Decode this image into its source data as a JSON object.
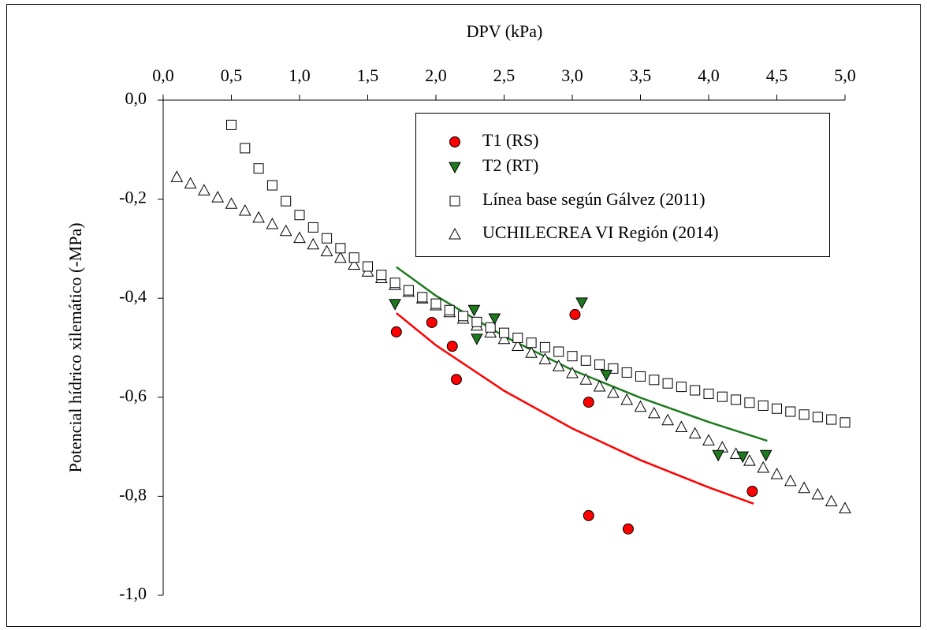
{
  "chart_data": {
    "type": "scatter",
    "xlabel": "DPV (kPa)",
    "ylabel": "Potencial hídrico xilemático (-MPa)",
    "xlim": [
      0,
      5
    ],
    "ylim": [
      -1,
      0
    ],
    "xticks": [
      {
        "value": 0,
        "label": "0,0"
      },
      {
        "value": 0.5,
        "label": "0,5"
      },
      {
        "value": 1,
        "label": "1,0"
      },
      {
        "value": 1.5,
        "label": "1,5"
      },
      {
        "value": 2,
        "label": "2,0"
      },
      {
        "value": 2.5,
        "label": "2,5"
      },
      {
        "value": 3,
        "label": "3,0"
      },
      {
        "value": 3.5,
        "label": "3,5"
      },
      {
        "value": 4,
        "label": "4,0"
      },
      {
        "value": 4.5,
        "label": "4,5"
      },
      {
        "value": 5,
        "label": "5,0"
      }
    ],
    "yticks": [
      {
        "value": 0,
        "label": "0,0"
      },
      {
        "value": -0.2,
        "label": "-0,2"
      },
      {
        "value": -0.4,
        "label": "-0,4"
      },
      {
        "value": -0.6,
        "label": "-0,6"
      },
      {
        "value": -0.8,
        "label": "-0,8"
      },
      {
        "value": -1,
        "label": "-1,0"
      }
    ],
    "legend": "top-right",
    "series": [
      {
        "name": "T1 (RS)",
        "color": "#ff0000",
        "marker": "circle",
        "x": [
          1.71,
          1.97,
          2.12,
          2.15,
          3.02,
          3.12,
          3.12,
          3.41,
          4.32
        ],
        "values": [
          -0.468,
          -0.449,
          -0.497,
          -0.564,
          -0.433,
          -0.61,
          -0.839,
          -0.866,
          -0.79
        ]
      },
      {
        "name": "T2 (RT)",
        "color": "#1f7a1f",
        "marker": "triangle-down",
        "x": [
          1.7,
          2.28,
          2.3,
          2.43,
          3.07,
          3.25,
          4.07,
          4.25,
          4.42
        ],
        "values": [
          -0.412,
          -0.424,
          -0.482,
          -0.441,
          -0.409,
          -0.555,
          -0.717,
          -0.72,
          -0.717
        ]
      },
      {
        "name": "Línea base según Gálvez (2011)",
        "color": "#ffffff",
        "marker": "square",
        "x": [
          0.5,
          0.6,
          0.7,
          0.8,
          0.9,
          1.0,
          1.1,
          1.2,
          1.3,
          1.4,
          1.5,
          1.6,
          1.7,
          1.8,
          1.9,
          2.0,
          2.1,
          2.2,
          2.3,
          2.4,
          2.5,
          2.6,
          2.7,
          2.8,
          2.9,
          3.0,
          3.1,
          3.2,
          3.3,
          3.4,
          3.5,
          3.6,
          3.7,
          3.8,
          3.9,
          4.0,
          4.1,
          4.2,
          4.3,
          4.4,
          4.5,
          4.6,
          4.7,
          4.8,
          4.9,
          5.0
        ],
        "values": [
          -0.05,
          -0.097,
          -0.138,
          -0.172,
          -0.204,
          -0.232,
          -0.257,
          -0.279,
          -0.299,
          -0.318,
          -0.336,
          -0.353,
          -0.369,
          -0.384,
          -0.398,
          -0.411,
          -0.424,
          -0.436,
          -0.448,
          -0.459,
          -0.47,
          -0.48,
          -0.49,
          -0.499,
          -0.508,
          -0.517,
          -0.526,
          -0.534,
          -0.542,
          -0.55,
          -0.558,
          -0.565,
          -0.572,
          -0.579,
          -0.586,
          -0.593,
          -0.599,
          -0.605,
          -0.611,
          -0.617,
          -0.623,
          -0.629,
          -0.635,
          -0.64,
          -0.645,
          -0.651
        ]
      },
      {
        "name": "UCHILECREA VI Región (2014)",
        "color": "#ffffff",
        "marker": "triangle-up",
        "x": [
          0.1,
          0.2,
          0.3,
          0.4,
          0.5,
          0.6,
          0.7,
          0.8,
          0.9,
          1.0,
          1.1,
          1.2,
          1.3,
          1.4,
          1.5,
          1.6,
          1.7,
          1.8,
          1.9,
          2.0,
          2.1,
          2.2,
          2.3,
          2.4,
          2.5,
          2.6,
          2.7,
          2.8,
          2.9,
          3.0,
          3.1,
          3.2,
          3.3,
          3.4,
          3.5,
          3.6,
          3.7,
          3.8,
          3.9,
          4.0,
          4.1,
          4.2,
          4.3,
          4.4,
          4.5,
          4.6,
          4.7,
          4.8,
          4.9,
          5.0
        ],
        "values": [
          -0.155,
          -0.168,
          -0.182,
          -0.196,
          -0.209,
          -0.223,
          -0.237,
          -0.25,
          -0.264,
          -0.278,
          -0.291,
          -0.305,
          -0.318,
          -0.332,
          -0.346,
          -0.359,
          -0.373,
          -0.387,
          -0.4,
          -0.414,
          -0.428,
          -0.441,
          -0.455,
          -0.469,
          -0.482,
          -0.496,
          -0.51,
          -0.523,
          -0.537,
          -0.551,
          -0.564,
          -0.578,
          -0.591,
          -0.605,
          -0.619,
          -0.632,
          -0.646,
          -0.66,
          -0.673,
          -0.687,
          -0.701,
          -0.714,
          -0.728,
          -0.742,
          -0.755,
          -0.769,
          -0.783,
          -0.796,
          -0.81,
          -0.824
        ]
      }
    ],
    "trendlines": [
      {
        "color": "#ff0000",
        "x": [
          1.71,
          2.0,
          2.5,
          3.0,
          3.5,
          4.0,
          4.33
        ],
        "values": [
          -0.43,
          -0.495,
          -0.587,
          -0.663,
          -0.727,
          -0.782,
          -0.815
        ]
      },
      {
        "color": "#1f7a1f",
        "x": [
          1.71,
          2.0,
          2.5,
          3.0,
          3.5,
          4.0,
          4.43
        ],
        "values": [
          -0.337,
          -0.395,
          -0.477,
          -0.545,
          -0.601,
          -0.65,
          -0.688
        ]
      }
    ]
  }
}
